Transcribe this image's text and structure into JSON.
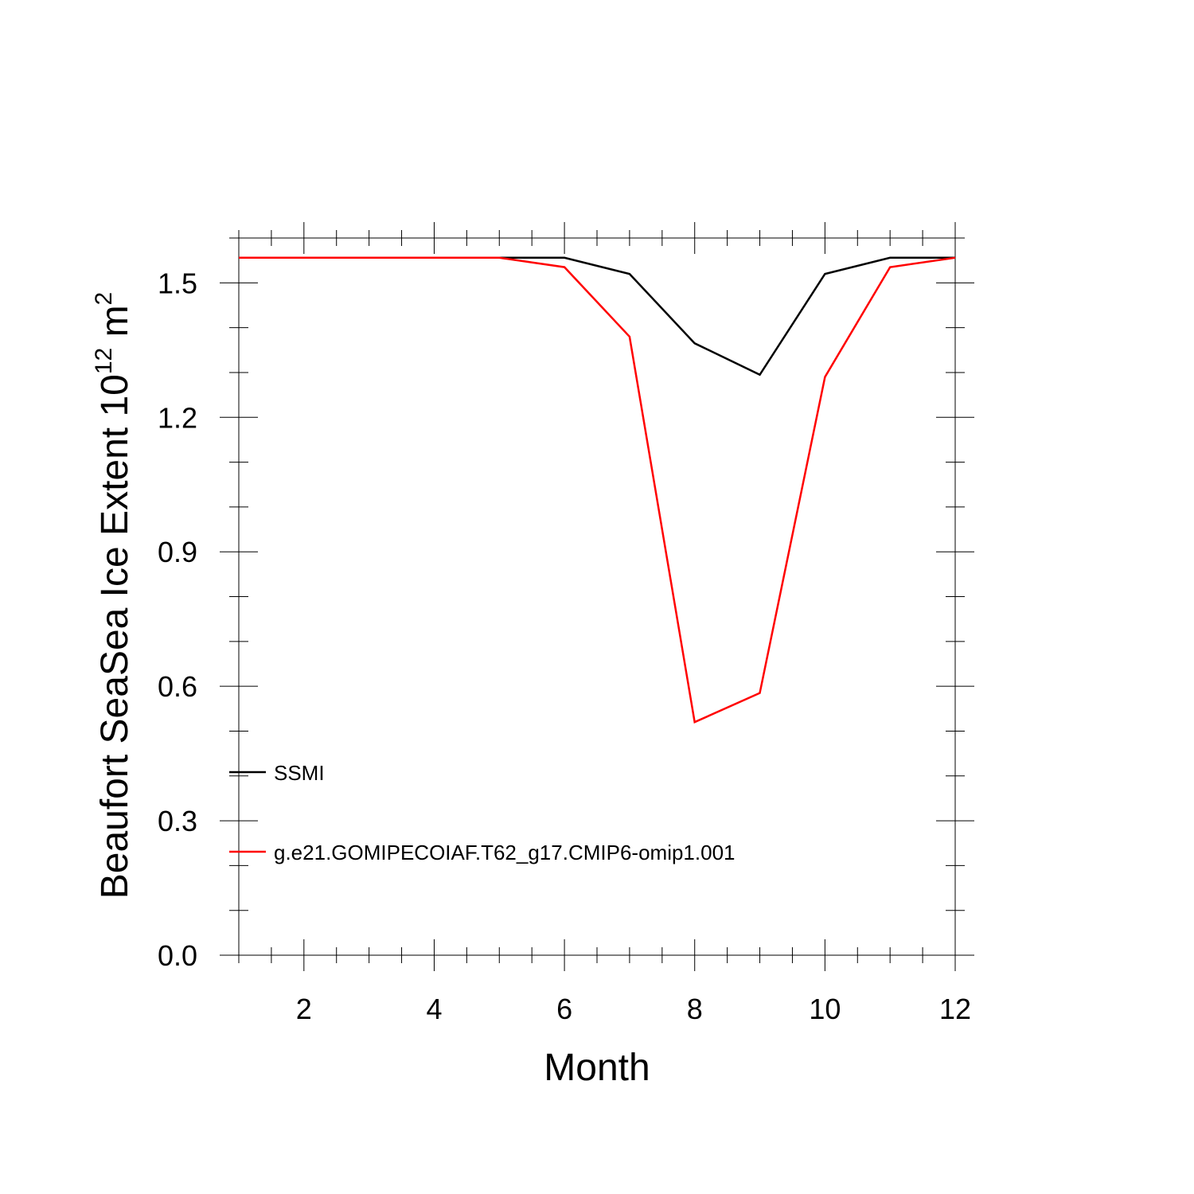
{
  "chart_data": {
    "type": "line",
    "title": "",
    "xlabel": "Month",
    "ylabel": {
      "prefix": "Beaufort SeaSea Ice Extent 10",
      "exponent1": "12",
      "middle": " m",
      "exponent2": "2"
    },
    "xlim": [
      1,
      12
    ],
    "ylim": [
      0,
      1.6
    ],
    "x_ticks": [
      2,
      4,
      6,
      8,
      10,
      12
    ],
    "x_minor_step": 0.5,
    "y_ticks": [
      0.0,
      0.3,
      0.6,
      0.9,
      1.2,
      1.5
    ],
    "y_tick_labels": [
      "0.0",
      "0.3",
      "0.6",
      "0.9",
      "1.2",
      "1.5"
    ],
    "y_minor_step": 0.1,
    "grid": false,
    "legend_position": "lower-left",
    "x": [
      1,
      2,
      3,
      4,
      5,
      6,
      7,
      8,
      9,
      10,
      11,
      12
    ],
    "series": [
      {
        "name": "SSMI",
        "color": "#000000",
        "values": [
          1.556,
          1.556,
          1.556,
          1.556,
          1.556,
          1.556,
          1.52,
          1.365,
          1.295,
          1.52,
          1.556,
          1.556
        ]
      },
      {
        "name": "g.e21.GOMIPECOIAF.T62_g17.CMIP6-omip1.001",
        "color": "#ff0000",
        "values": [
          1.556,
          1.556,
          1.556,
          1.556,
          1.556,
          1.535,
          1.38,
          0.52,
          0.585,
          1.29,
          1.535,
          1.556
        ]
      }
    ]
  }
}
